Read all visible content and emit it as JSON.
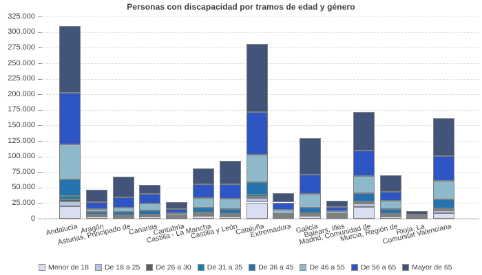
{
  "chart_data": {
    "type": "bar",
    "stacked": true,
    "title": "Personas con discapacidad por tramos de edad y género",
    "xlabel": "",
    "ylabel": "",
    "ylim": [
      0,
      325000
    ],
    "ytick_step": 25000,
    "ytick_format": "dot-thousands",
    "grid": "horizontal-dashed",
    "legend_position": "bottom",
    "categories": [
      "Andalucía",
      "Aragón",
      "Asturias, Principado de",
      "Canarias",
      "Cantabria",
      "Castilla - La Mancha",
      "Castilla y León",
      "Cataluña",
      "Extremadura",
      "Galicia",
      "Balears, Illes",
      "Madrid, Comunidad de",
      "Murcia, Región de",
      "Rioja, La",
      "Comunitat Valenciana"
    ],
    "series": [
      {
        "name": "Menor de 18",
        "color": "#d9dff0",
        "values": [
          20000,
          3000,
          2000,
          3000,
          1000,
          5000,
          3000,
          26000,
          2000,
          4000,
          2000,
          19000,
          3000,
          1000,
          9000
        ]
      },
      {
        "name": "De 18 a 25",
        "color": "#b1c6e8",
        "values": [
          8000,
          2000,
          1000,
          1000,
          1000,
          1000,
          2000,
          7000,
          1000,
          2000,
          1000,
          5000,
          2000,
          500,
          4000
        ]
      },
      {
        "name": "De 26 a 30",
        "color": "#5b5e62",
        "values": [
          3000,
          1000,
          1000,
          1000,
          500,
          2000,
          1000,
          2000,
          1000,
          1000,
          1000,
          2000,
          1000,
          300,
          2000
        ]
      },
      {
        "name": "De 31 a 35",
        "color": "#12829e",
        "values": [
          5000,
          1000,
          2000,
          2000,
          500,
          2000,
          2000,
          4000,
          1000,
          2000,
          1000,
          2000,
          2000,
          400,
          2000
        ]
      },
      {
        "name": "De 36 a 45",
        "color": "#2472ae",
        "values": [
          27000,
          4000,
          5000,
          6000,
          2000,
          8000,
          7000,
          20000,
          3000,
          9000,
          3000,
          13000,
          8000,
          800,
          14000
        ]
      },
      {
        "name": "De 46 a 55",
        "color": "#8db9cb",
        "values": [
          56000,
          5000,
          7000,
          11000,
          4000,
          15000,
          17000,
          44000,
          6000,
          22000,
          4000,
          28000,
          13000,
          1500,
          30000
        ]
      },
      {
        "name": "De 56 a 65",
        "color": "#2d55c3",
        "values": [
          83000,
          11000,
          16000,
          16000,
          7000,
          22000,
          23000,
          68000,
          12000,
          31000,
          7000,
          41000,
          14000,
          2000,
          40000
        ]
      },
      {
        "name": "Mayor de 65",
        "color": "#42547a",
        "values": [
          108000,
          20000,
          34000,
          14000,
          11000,
          26000,
          38000,
          110000,
          15000,
          58000,
          10000,
          62000,
          27000,
          5500,
          60000
        ]
      }
    ]
  }
}
